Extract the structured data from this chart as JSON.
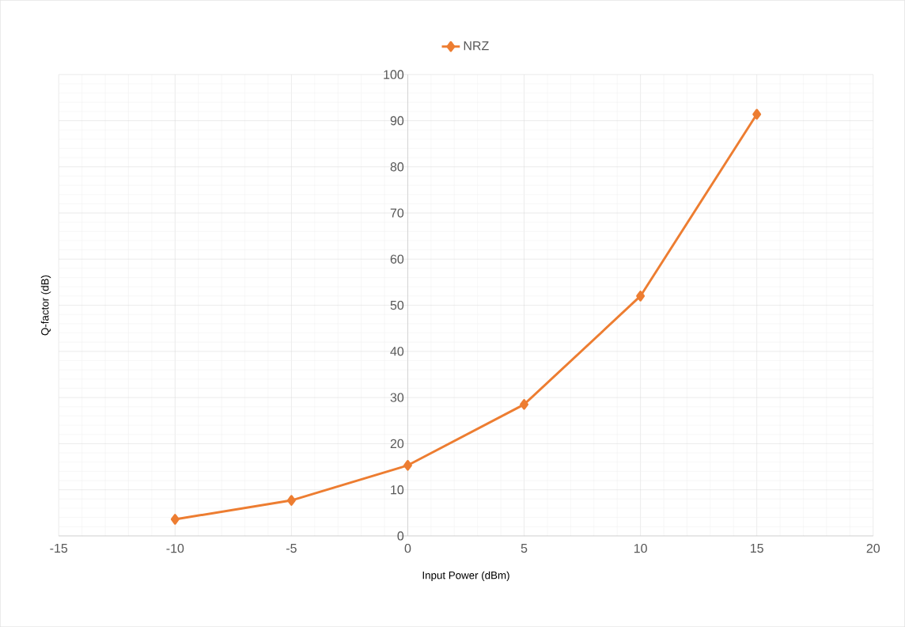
{
  "chart_data": {
    "type": "line",
    "xlabel": "Input Power (dBm)",
    "ylabel": "Q-factor (dB)",
    "x": [
      -10,
      -5,
      0,
      5,
      10,
      15
    ],
    "series": [
      {
        "name": "NRZ",
        "color": "#ed7d31",
        "values": [
          3.6,
          7.7,
          15.3,
          28.5,
          52.0,
          91.4
        ]
      }
    ],
    "xlim": [
      -15,
      20
    ],
    "ylim": [
      0,
      100
    ],
    "xticks": [
      -15,
      -10,
      -5,
      0,
      5,
      10,
      15,
      20
    ],
    "yticks": [
      0,
      10,
      20,
      30,
      40,
      50,
      60,
      70,
      80,
      90,
      100
    ],
    "grid": true,
    "legend": "top",
    "marker": "diamond",
    "line_style": "solid"
  }
}
